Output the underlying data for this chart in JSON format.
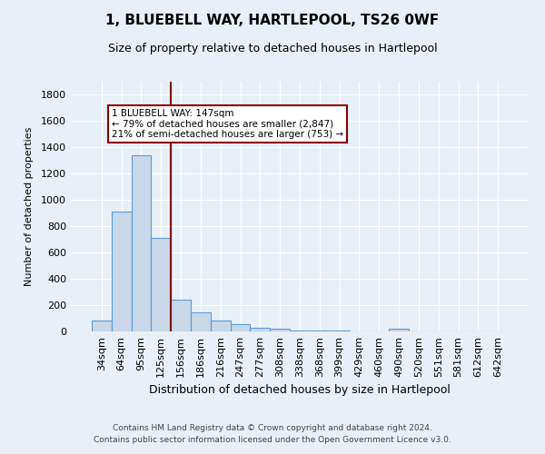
{
  "title1": "1, BLUEBELL WAY, HARTLEPOOL, TS26 0WF",
  "title2": "Size of property relative to detached houses in Hartlepool",
  "xlabel": "Distribution of detached houses by size in Hartlepool",
  "ylabel": "Number of detached properties",
  "footer1": "Contains HM Land Registry data © Crown copyright and database right 2024.",
  "footer2": "Contains public sector information licensed under the Open Government Licence v3.0.",
  "annotation_line1": "1 BLUEBELL WAY: 147sqm",
  "annotation_line2": "← 79% of detached houses are smaller (2,847)",
  "annotation_line3": "21% of semi-detached houses are larger (753) →",
  "bar_color": "#c8d8e8",
  "bar_edge_color": "#5b9bd5",
  "vline_color": "#8b0000",
  "annotation_box_edge_color": "#8b0000",
  "background_color": "#e8eff6",
  "categories": [
    "34sqm",
    "64sqm",
    "95sqm",
    "125sqm",
    "156sqm",
    "186sqm",
    "216sqm",
    "247sqm",
    "277sqm",
    "308sqm",
    "338sqm",
    "368sqm",
    "399sqm",
    "429sqm",
    "460sqm",
    "490sqm",
    "520sqm",
    "551sqm",
    "581sqm",
    "612sqm",
    "642sqm"
  ],
  "values": [
    80,
    910,
    1340,
    710,
    245,
    148,
    80,
    55,
    30,
    18,
    10,
    6,
    10,
    0,
    0,
    18,
    0,
    0,
    0,
    0,
    0
  ],
  "ylim": [
    0,
    1900
  ],
  "yticks": [
    0,
    200,
    400,
    600,
    800,
    1000,
    1200,
    1400,
    1600,
    1800
  ],
  "vline_x": 3.5,
  "figwidth": 6.0,
  "figheight": 5.0,
  "dpi": 100
}
